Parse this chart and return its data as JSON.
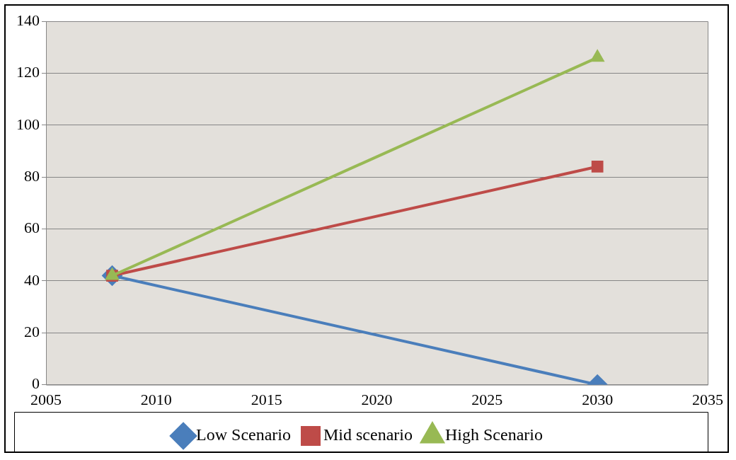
{
  "chart_data": {
    "type": "line",
    "x": [
      2008,
      2030
    ],
    "series": [
      {
        "name": "Low Scenario",
        "color": "#4a7ebb",
        "values": [
          42,
          0
        ],
        "marker": "diamond"
      },
      {
        "name": "Mid scenario",
        "color": "#be4b48",
        "values": [
          42,
          84
        ],
        "marker": "square"
      },
      {
        "name": "High Scenario",
        "color": "#98b954",
        "values": [
          42,
          126
        ],
        "marker": "triangle"
      }
    ],
    "xlim": [
      2005,
      2035
    ],
    "xticks": [
      2005,
      2010,
      2015,
      2020,
      2025,
      2030,
      2035
    ],
    "ylim": [
      0,
      140
    ],
    "yticks": [
      0,
      20,
      40,
      60,
      80,
      100,
      120,
      140
    ],
    "grid": "y",
    "legend": "bottom",
    "line_style": "solid"
  }
}
